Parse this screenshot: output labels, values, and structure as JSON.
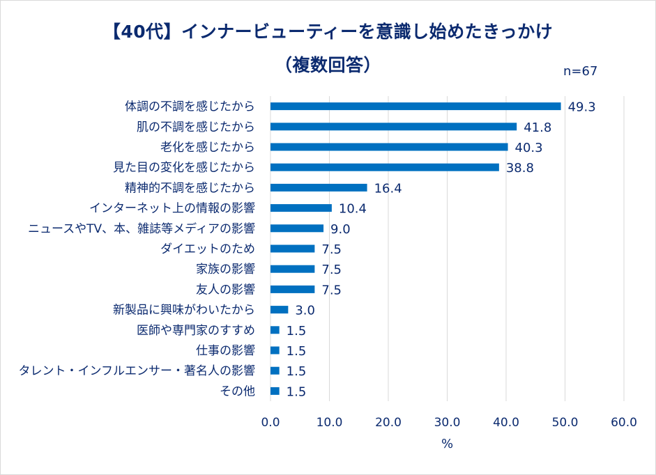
{
  "chart_data": {
    "type": "bar",
    "orientation": "horizontal",
    "title": "【40代】インナービューティーを意識し始めたきっかけ",
    "subtitle": "（複数回答）",
    "note": "n=67",
    "xlabel": "%",
    "xlim": [
      0,
      60
    ],
    "xticks": [
      "0.0",
      "10.0",
      "20.0",
      "30.0",
      "40.0",
      "50.0",
      "60.0"
    ],
    "grid": true,
    "bar_color": "#0070c0",
    "categories": [
      "体調の不調を感じたから",
      "肌の不調を感じたから",
      "老化を感じたから",
      "見た目の変化を感じたから",
      "精神的不調を感じたから",
      "インターネット上の情報の影響",
      "ニュースやTV、本、雑誌等メディアの影響",
      "ダイエットのため",
      "家族の影響",
      "友人の影響",
      "新製品に興味がわいたから",
      "医師や専門家のすすめ",
      "仕事の影響",
      "タレント・インフルエンサー・著名人の影響",
      "その他"
    ],
    "values": [
      49.3,
      41.8,
      40.3,
      38.8,
      16.4,
      10.4,
      9.0,
      7.5,
      7.5,
      7.5,
      3.0,
      1.5,
      1.5,
      1.5,
      1.5
    ],
    "value_labels": [
      "49.3",
      "41.8",
      "40.3",
      "38.8",
      "16.4",
      "10.4",
      "9.0",
      "7.5",
      "7.5",
      "7.5",
      "3.0",
      "1.5",
      "1.5",
      "1.5",
      "1.5"
    ]
  }
}
